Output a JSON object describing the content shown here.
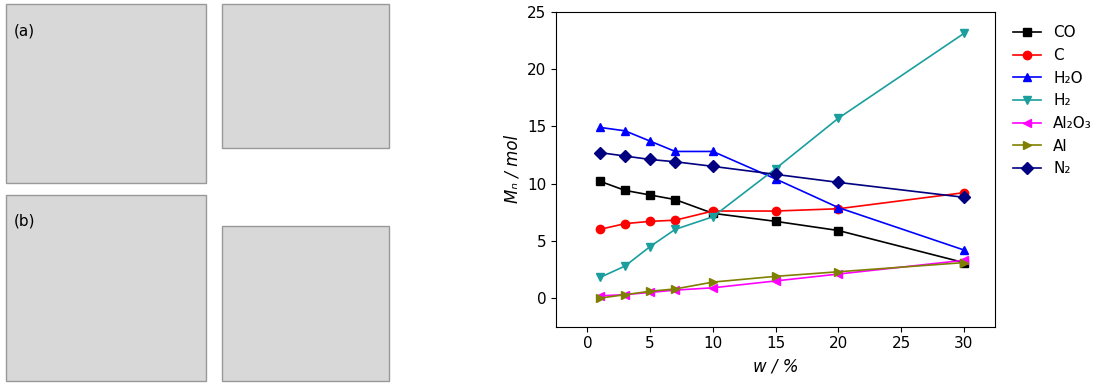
{
  "chart_data": {
    "type": "line",
    "x_label": "w / %",
    "y_label": "Mₙ / mol",
    "x": [
      1,
      3,
      5,
      7,
      10,
      15,
      20,
      30
    ],
    "series": [
      {
        "name": "CO",
        "color": "#000000",
        "marker": "square",
        "values": [
          10.2,
          9.4,
          9.0,
          8.6,
          7.4,
          6.7,
          5.9,
          3.1
        ]
      },
      {
        "name": "C",
        "color": "#ff0000",
        "marker": "circle",
        "values": [
          6.0,
          6.5,
          6.7,
          6.8,
          7.6,
          7.6,
          7.8,
          9.2
        ]
      },
      {
        "name": "H₂O",
        "color": "#0000ff",
        "marker": "triangle_up",
        "values": [
          14.9,
          14.6,
          13.7,
          12.8,
          12.8,
          10.4,
          7.9,
          4.2
        ]
      },
      {
        "name": "H₂",
        "color": "#1a9e9e",
        "marker": "triangle_down",
        "values": [
          1.8,
          2.8,
          4.5,
          6.0,
          7.1,
          11.3,
          15.7,
          23.1
        ]
      },
      {
        "name": "Al₂O₃",
        "color": "#ff00ff",
        "marker": "triangle_left",
        "values": [
          0.2,
          0.3,
          0.5,
          0.7,
          0.9,
          1.5,
          2.1,
          3.3
        ]
      },
      {
        "name": "Al",
        "color": "#808000",
        "marker": "triangle_right",
        "values": [
          0.0,
          0.3,
          0.6,
          0.8,
          1.4,
          1.9,
          2.3,
          3.1
        ]
      },
      {
        "name": "N₂",
        "color": "#000080",
        "marker": "diamond",
        "values": [
          12.7,
          12.4,
          12.1,
          11.9,
          11.5,
          10.8,
          10.1,
          8.8
        ]
      }
    ],
    "xlim": [
      -2.5,
      32.5
    ],
    "xticks": [
      0,
      5,
      10,
      15,
      20,
      25,
      30
    ],
    "ylim": [
      -2.5,
      25
    ],
    "yticks": [
      0,
      5,
      10,
      15,
      20,
      25
    ],
    "legend": "upper left",
    "grid": false,
    "panel_labels": [
      "(a)",
      "(b)"
    ]
  }
}
